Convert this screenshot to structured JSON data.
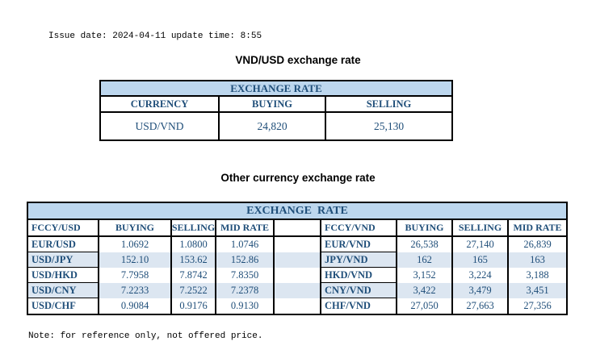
{
  "page": {
    "issue_line": "Issue date: 2024-04-11 update time: 8:55",
    "note": "Note: for reference only, not offered price."
  },
  "colors": {
    "banner_bg": "#BDD7EE",
    "stripe_bg": "#DCE6F1",
    "table_text": "#1F4E79",
    "border": "#000000"
  },
  "usd_table": {
    "title": "VND/USD exchange rate",
    "banner": "EXCHANGE RATE",
    "columns": {
      "currency": "CURRENCY",
      "buying": "BUYING",
      "selling": "SELLING"
    },
    "rows": [
      {
        "currency": "USD/VND",
        "buying": "24,820",
        "selling": "25,130"
      }
    ]
  },
  "other_table": {
    "title": "Other currency exchange rate",
    "banner": "EXCHANGE  RATE",
    "left": {
      "columns": [
        "FCCY/USD",
        "BUYING",
        "SELLING",
        "MID RATE"
      ],
      "rows": [
        [
          "EUR/USD",
          "1.0692",
          "1.0800",
          "1.0746"
        ],
        [
          "USD/JPY",
          "152.10",
          "153.62",
          "152.86"
        ],
        [
          "USD/HKD",
          "7.7958",
          "7.8742",
          "7.8350"
        ],
        [
          "USD/CNY",
          "7.2233",
          "7.2522",
          "7.2378"
        ],
        [
          "USD/CHF",
          "0.9084",
          "0.9176",
          "0.9130"
        ]
      ]
    },
    "right": {
      "columns": [
        "FCCY/VND",
        "BUYING",
        "SELLING",
        "MID RATE"
      ],
      "rows": [
        [
          "EUR/VND",
          "26,538",
          "27,140",
          "26,839"
        ],
        [
          "JPY/VND",
          "162",
          "165",
          "163"
        ],
        [
          "HKD/VND",
          "3,152",
          "3,224",
          "3,188"
        ],
        [
          "CNY/VND",
          "3,422",
          "3,479",
          "3,451"
        ],
        [
          "CHF/VND",
          "27,050",
          "27,663",
          "27,356"
        ]
      ]
    }
  }
}
